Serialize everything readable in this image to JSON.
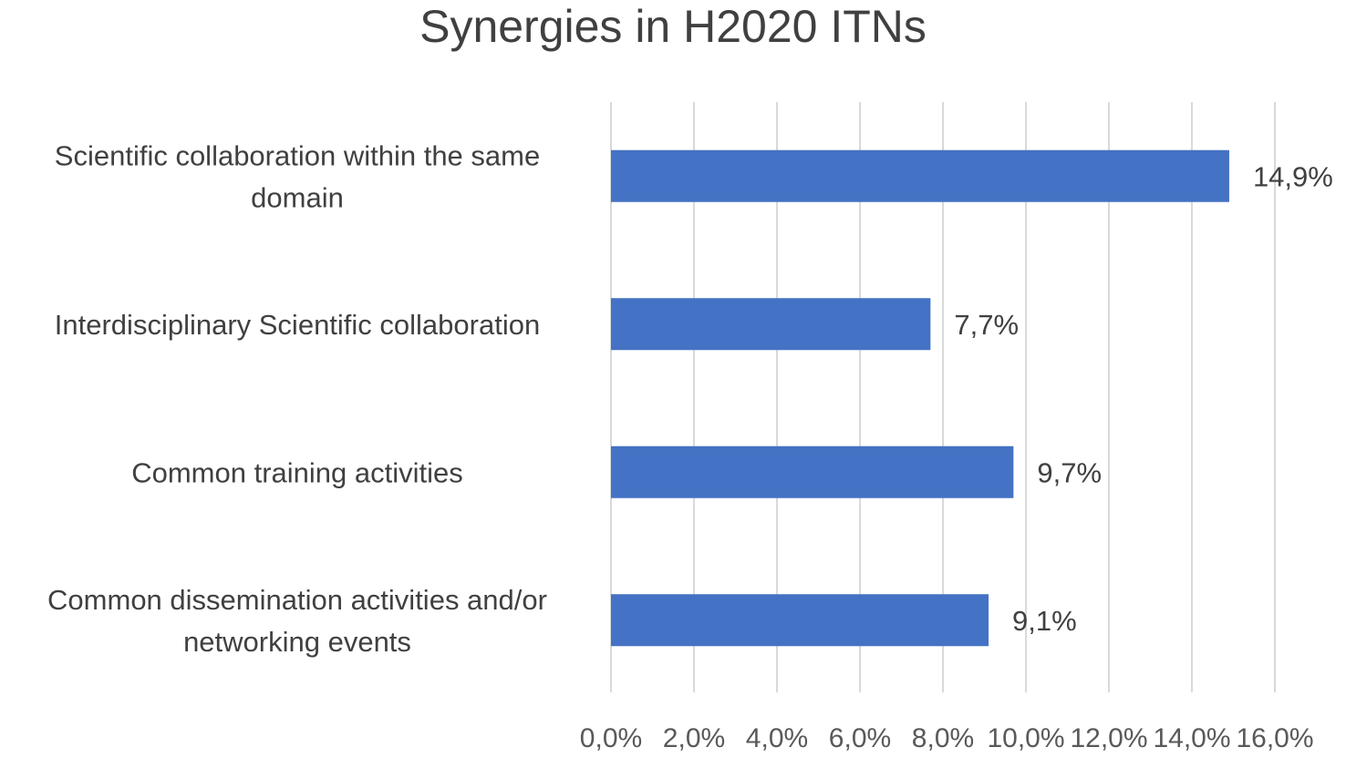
{
  "chart_data": {
    "type": "bar",
    "orientation": "horizontal",
    "title": "Synergies in H2020 ITNs",
    "categories": [
      [
        "Scientific collaboration within the same",
        "domain"
      ],
      [
        "Interdisciplinary Scientific collaboration"
      ],
      [
        "Common training activities"
      ],
      [
        "Common dissemination activities and/or",
        "networking events"
      ]
    ],
    "values": [
      14.9,
      7.7,
      9.7,
      9.1
    ],
    "data_labels": [
      "14,9%",
      "7,7%",
      "9,7%",
      "9,1%"
    ],
    "xlim": [
      0,
      16
    ],
    "x_ticks": [
      0,
      2,
      4,
      6,
      8,
      10,
      12,
      14,
      16
    ],
    "x_tick_labels": [
      "0,0%",
      "2,0%",
      "4,0%",
      "6,0%",
      "8,0%",
      "10,0%",
      "12,0%",
      "14,0%",
      "16,0%"
    ],
    "grid": "vertical",
    "legend": "none",
    "bar_color": "#4472c4",
    "grid_color": "#d9d9d9"
  }
}
